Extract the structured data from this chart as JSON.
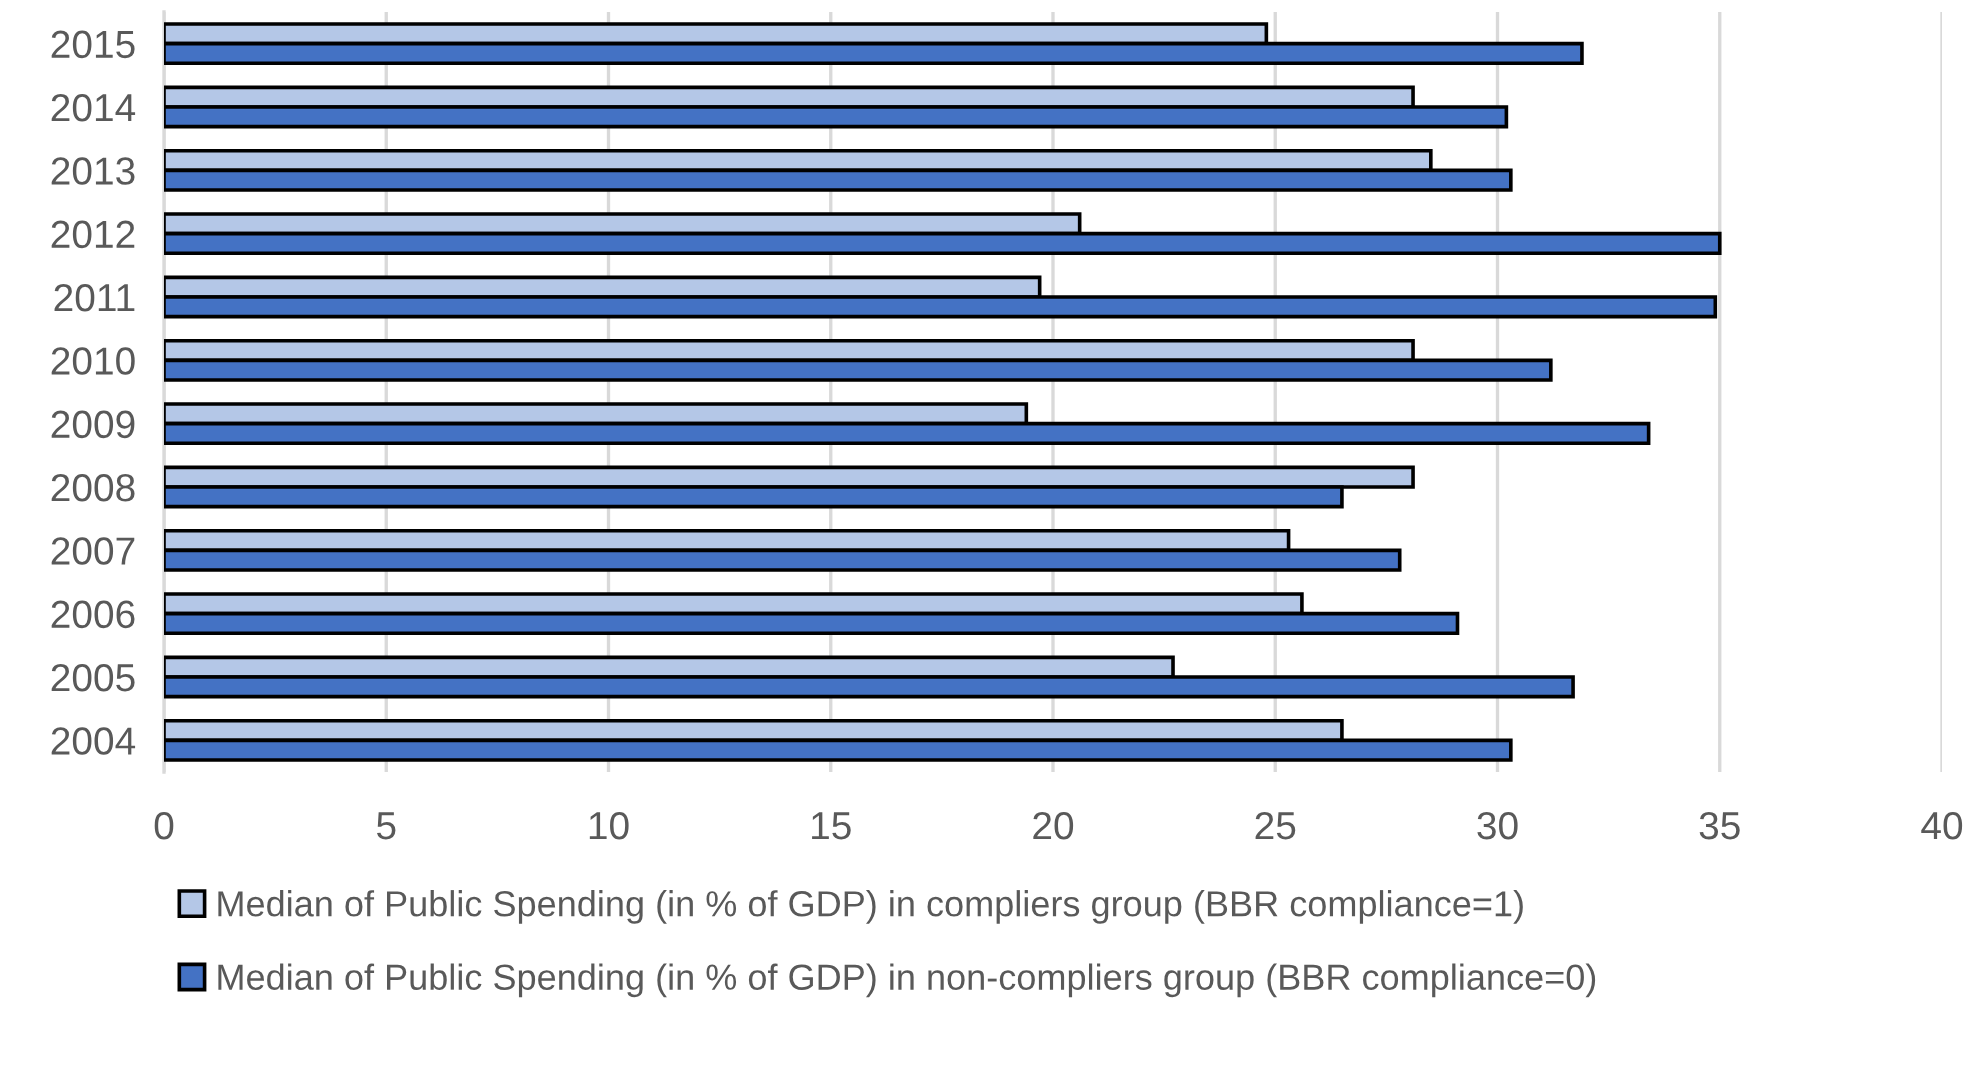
{
  "chart_data": {
    "type": "bar",
    "orientation": "horizontal",
    "categories": [
      "2015",
      "2014",
      "2013",
      "2012",
      "2011",
      "2010",
      "2009",
      "2008",
      "2007",
      "2006",
      "2005",
      "2004"
    ],
    "series": [
      {
        "name": "Median of Public Spending (in % of GDP) in compliers group (BBR compliance=1)",
        "color": "#b4c7e7",
        "values": [
          24.8,
          28.1,
          28.5,
          20.6,
          19.7,
          28.1,
          19.4,
          28.1,
          25.3,
          25.6,
          22.7,
          26.5
        ]
      },
      {
        "name": "Median of Public Spending (in % of GDP) in non-compliers group (BBR compliance=0)",
        "color": "#4472c4",
        "values": [
          31.9,
          30.2,
          30.3,
          35.0,
          34.9,
          31.2,
          33.4,
          26.5,
          27.8,
          29.1,
          31.7,
          30.3
        ]
      }
    ],
    "xlim": [
      0,
      40
    ],
    "xticks": [
      0,
      5,
      10,
      15,
      20,
      25,
      30,
      35,
      40
    ],
    "grid": "x",
    "legend": "bottom"
  }
}
